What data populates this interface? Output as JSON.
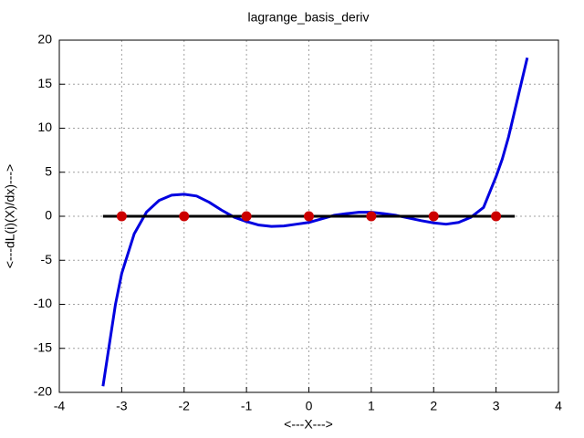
{
  "chart_data": {
    "type": "line",
    "title": "lagrange_basis_deriv",
    "x_label": "<---X--->",
    "y_label": "<---dL(i)(X)/dx)--->",
    "xlim": [
      -4,
      4
    ],
    "ylim": [
      -20,
      20
    ],
    "xticks": [
      -4,
      -3,
      -2,
      -1,
      0,
      1,
      2,
      3,
      4
    ],
    "yticks": [
      -20,
      -15,
      -10,
      -5,
      0,
      5,
      10,
      15,
      20
    ],
    "grid": true,
    "series": [
      {
        "color": "#0000e0",
        "style": "line",
        "x": [
          -3.3,
          -3.1,
          -3.0,
          -2.8,
          -2.6,
          -2.4,
          -2.2,
          -2.0,
          -1.8,
          -1.6,
          -1.4,
          -1.2,
          -1.0,
          -0.8,
          -0.6,
          -0.4,
          -0.2,
          0,
          0.2,
          0.4,
          0.6,
          0.8,
          1.0,
          1.2,
          1.4,
          1.6,
          1.8,
          2.0,
          2.2,
          2.4,
          2.6,
          2.8,
          3.0,
          3.1,
          3.2,
          3.3,
          3.4,
          3.5
        ],
        "values": [
          -19.3,
          -10,
          -6.5,
          -2,
          0.5,
          1.8,
          2.4,
          2.5,
          2.3,
          1.6,
          0.7,
          -0.1,
          -0.6,
          -1.0,
          -1.15,
          -1.1,
          -0.9,
          -0.7,
          -0.3,
          0.1,
          0.3,
          0.45,
          0.45,
          0.3,
          0.1,
          -0.2,
          -0.5,
          -0.75,
          -0.9,
          -0.7,
          -0.1,
          1,
          4.5,
          6.5,
          9,
          12,
          15,
          18
        ]
      },
      {
        "color": "#000000",
        "style": "line",
        "x": [
          -3.3,
          3.3
        ],
        "values": [
          0,
          0
        ]
      },
      {
        "color": "#cc0000",
        "style": "points",
        "x": [
          -3,
          -2,
          -1,
          0,
          1,
          2,
          3
        ],
        "values": [
          0,
          0,
          0,
          0,
          0,
          0,
          0
        ]
      }
    ]
  }
}
